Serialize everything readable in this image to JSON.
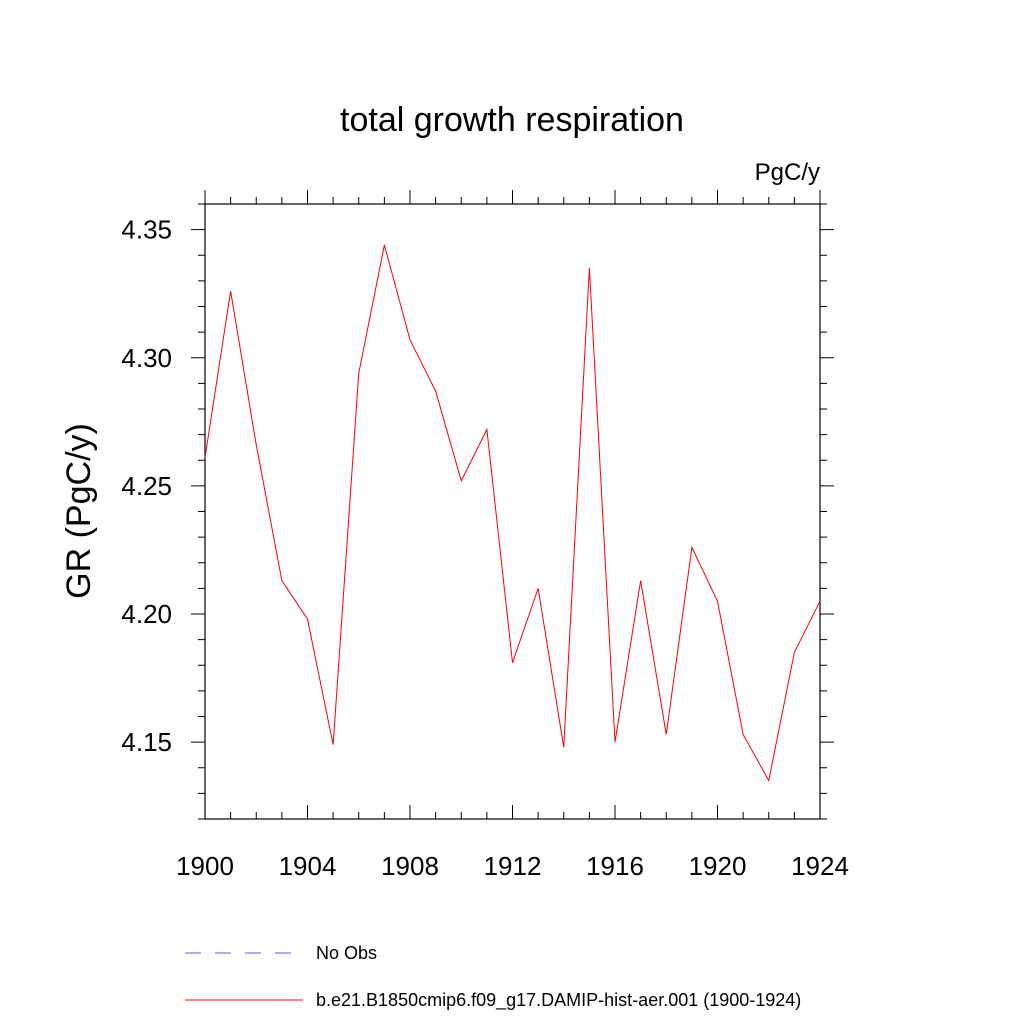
{
  "chart_data": {
    "type": "line",
    "title": "total growth respiration",
    "units_label": "PgC/y",
    "ylabel": "GR  (PgC/y)",
    "xlabel": "",
    "xlim": [
      1900,
      1924
    ],
    "ylim": [
      4.12,
      4.36
    ],
    "x_ticks": [
      1900,
      1904,
      1908,
      1912,
      1916,
      1920,
      1924
    ],
    "x_tick_labels": [
      "1900",
      "1904",
      "1908",
      "1912",
      "1916",
      "1920",
      "1924"
    ],
    "y_ticks": [
      4.15,
      4.2,
      4.25,
      4.3,
      4.35
    ],
    "y_tick_labels": [
      "4.15",
      "4.20",
      "4.25",
      "4.30",
      "4.35"
    ],
    "grid": false,
    "legend_position": "bottom",
    "series": [
      {
        "name": "b.e21.B1850cmip6.f09_g17.DAMIP-hist-aer.001 (1900-1924)",
        "color": "#ff0000",
        "dash": "solid",
        "x": [
          1900,
          1901,
          1902,
          1903,
          1904,
          1905,
          1906,
          1907,
          1908,
          1909,
          1910,
          1911,
          1912,
          1913,
          1914,
          1915,
          1916,
          1917,
          1918,
          1919,
          1920,
          1921,
          1922,
          1923,
          1924
        ],
        "values": [
          4.261,
          4.326,
          4.266,
          4.213,
          4.198,
          4.149,
          4.294,
          4.344,
          4.307,
          4.287,
          4.252,
          4.272,
          4.181,
          4.21,
          4.148,
          4.335,
          4.15,
          4.213,
          4.153,
          4.226,
          4.205,
          4.153,
          4.135,
          4.185,
          4.205
        ]
      }
    ],
    "legend": [
      {
        "label": "No Obs",
        "color": "#6a5acd",
        "dash": "dashed"
      },
      {
        "label": "b.e21.B1850cmip6.f09_g17.DAMIP-hist-aer.001 (1900-1924)",
        "color": "#ff0000",
        "dash": "solid"
      }
    ]
  }
}
